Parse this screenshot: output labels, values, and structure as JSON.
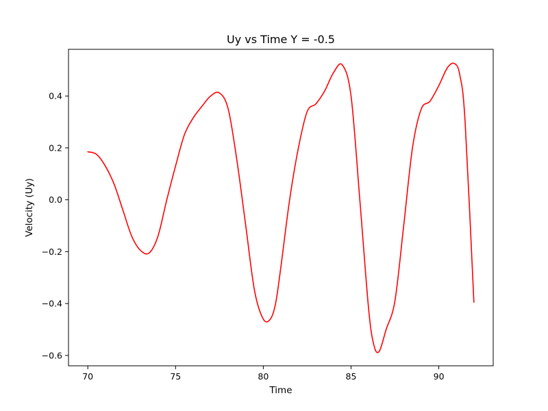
{
  "chart_data": {
    "type": "line",
    "title": "Uy vs Time Y = -0.5",
    "xlabel": "Time",
    "ylabel": "Velocity (Uy)",
    "xlim": [
      68.9,
      93.1
    ],
    "ylim": [
      -0.64,
      0.58
    ],
    "xticks": [
      70,
      75,
      80,
      85,
      90
    ],
    "yticks": [
      -0.6,
      -0.4,
      -0.2,
      0.0,
      0.2,
      0.4
    ],
    "xtick_labels": [
      "70",
      "75",
      "80",
      "85",
      "90"
    ],
    "ytick_labels": [
      "−0.6",
      "−0.4",
      "−0.2",
      "0.0",
      "0.2",
      "0.4"
    ],
    "grid": false,
    "series": [
      {
        "color": "#ff0000",
        "x": [
          70.0,
          70.5,
          71.0,
          71.5,
          72.0,
          72.5,
          73.0,
          73.5,
          74.0,
          74.5,
          75.0,
          75.5,
          76.0,
          76.5,
          77.0,
          77.5,
          78.0,
          78.5,
          79.0,
          79.5,
          80.0,
          80.4,
          80.7,
          81.0,
          81.5,
          82.0,
          82.5,
          83.0,
          83.5,
          84.0,
          84.5,
          85.0,
          85.5,
          86.0,
          86.3,
          86.6,
          87.0,
          87.5,
          88.0,
          88.5,
          89.0,
          89.5,
          90.0,
          90.5,
          90.9,
          91.2,
          91.5,
          92.0
        ],
        "y": [
          0.185,
          0.175,
          0.13,
          0.06,
          -0.04,
          -0.14,
          -0.195,
          -0.205,
          -0.14,
          0.0,
          0.13,
          0.25,
          0.315,
          0.36,
          0.4,
          0.412,
          0.35,
          0.15,
          -0.1,
          -0.35,
          -0.46,
          -0.46,
          -0.4,
          -0.26,
          0.0,
          0.2,
          0.34,
          0.37,
          0.42,
          0.49,
          0.52,
          0.4,
          0.0,
          -0.42,
          -0.56,
          -0.585,
          -0.5,
          -0.39,
          -0.1,
          0.2,
          0.35,
          0.38,
          0.44,
          0.51,
          0.525,
          0.48,
          0.3,
          -0.395
        ]
      }
    ]
  }
}
